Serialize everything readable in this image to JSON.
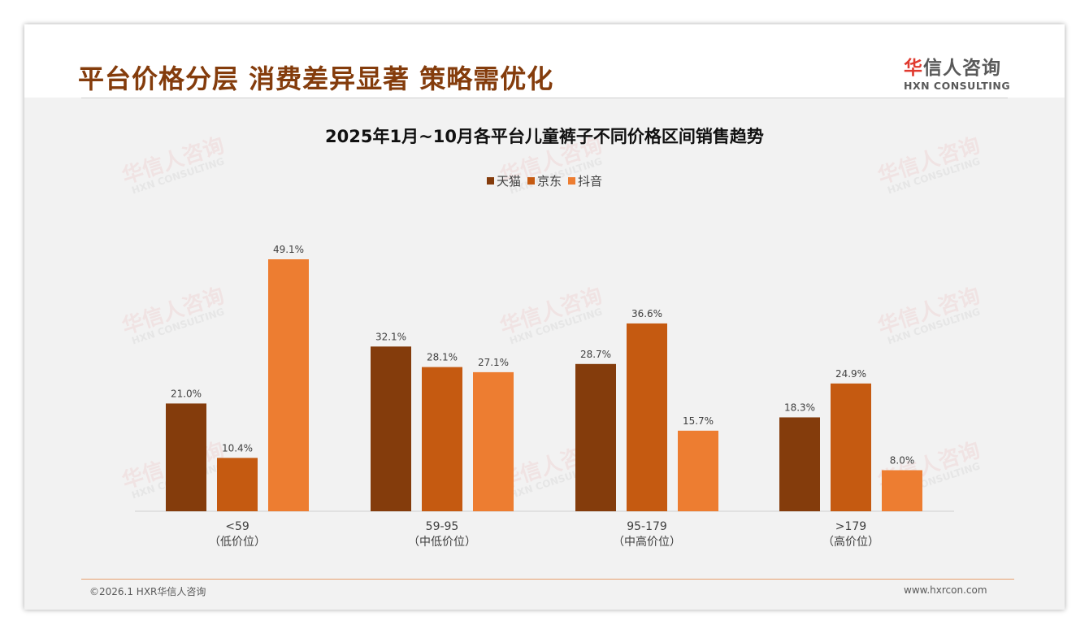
{
  "header": {
    "title": "平台价格分层 消费差异显著 策略需优化",
    "logo_cn_red": "华",
    "logo_cn": "信人咨询",
    "logo_en": "HXN CONSULTING"
  },
  "footer": {
    "copyright": "©2026.1 HXR华信人咨询",
    "url": "www.hxrcon.com"
  },
  "colors": {
    "tmall": "#843C0C",
    "jd": "#C55A11",
    "douyin": "#ED7D31"
  },
  "chart_data": {
    "type": "bar",
    "title": "2025年1月~10月各平台儿童裤子不同价格区间销售趋势",
    "categories": [
      "<59",
      "59-95",
      "95-179",
      ">179"
    ],
    "category_sublabels": [
      "（低价位）",
      "（中低价位）",
      "（中高价位）",
      "（高价位）"
    ],
    "series": [
      {
        "name": "天猫",
        "values": [
          21.0,
          32.1,
          28.7,
          18.3
        ]
      },
      {
        "name": "京东",
        "values": [
          10.4,
          28.1,
          36.6,
          24.9
        ]
      },
      {
        "name": "抖音",
        "values": [
          49.1,
          27.1,
          15.7,
          8.0
        ]
      }
    ],
    "value_format": "%",
    "ylim": [
      0,
      50
    ],
    "grid": false,
    "legend": "top-center"
  }
}
